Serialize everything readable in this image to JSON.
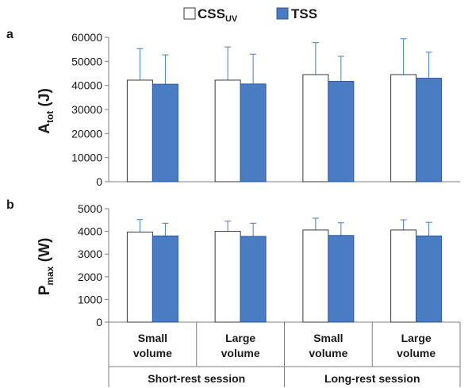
{
  "chart_data": [
    {
      "type": "bar",
      "panel": "a",
      "ylabel": "A",
      "ylabel_sub": "tot",
      "ylabel_unit": " (J)",
      "ylim": [
        0,
        60000
      ],
      "yticks": [
        "0",
        "10000",
        "20000",
        "30000",
        "40000",
        "50000",
        "60000"
      ],
      "ytick_values": [
        0,
        10000,
        20000,
        30000,
        40000,
        50000,
        60000
      ],
      "categories": [
        "Small volume",
        "Large volume",
        "Small volume",
        "Large volume"
      ],
      "series": [
        {
          "name": "CSS_UV",
          "values": [
            42200,
            42200,
            44500,
            44500
          ],
          "error_up": [
            13100,
            13800,
            13300,
            14900
          ]
        },
        {
          "name": "TSS",
          "values": [
            40500,
            40600,
            41700,
            43000
          ],
          "error_up": [
            12200,
            12400,
            10400,
            10800
          ]
        }
      ],
      "grid": false
    },
    {
      "type": "bar",
      "panel": "b",
      "ylabel": "P",
      "ylabel_sub": "max",
      "ylabel_unit": " (W)",
      "ylim": [
        0,
        5000
      ],
      "yticks": [
        "0",
        "1000",
        "2000",
        "3000",
        "4000",
        "5000"
      ],
      "ytick_values": [
        0,
        1000,
        2000,
        3000,
        4000,
        5000
      ],
      "categories": [
        "Small volume",
        "Large volume",
        "Small volume",
        "Large volume"
      ],
      "series": [
        {
          "name": "CSS_UV",
          "values": [
            3970,
            4000,
            4060,
            4060
          ],
          "error_up": [
            550,
            450,
            520,
            450
          ]
        },
        {
          "name": "TSS",
          "values": [
            3800,
            3780,
            3820,
            3800
          ],
          "error_up": [
            560,
            580,
            560,
            600
          ]
        }
      ],
      "grid": false
    }
  ],
  "legend": {
    "placement": "top-center",
    "items": [
      {
        "main": "CSS",
        "sub": "UV",
        "color": "#ffffff",
        "stroke": "#3a3a3a"
      },
      {
        "main": "TSS",
        "sub": "",
        "color": "#4a7cc4",
        "stroke": "#2c5a9a"
      }
    ]
  },
  "x_axis": {
    "categories": [
      {
        "line1": "Small",
        "line2": "volume"
      },
      {
        "line1": "Large",
        "line2": "volume"
      },
      {
        "line1": "Small",
        "line2": "volume"
      },
      {
        "line1": "Large",
        "line2": "volume"
      }
    ],
    "groups": [
      "Short-rest session",
      "Long-rest session"
    ]
  },
  "colors": {
    "css_fill": "#ffffff",
    "css_stroke": "#3a3a3a",
    "tss_fill": "#4a7cc4",
    "tss_stroke": "#2c5a9a",
    "axis": "#7f7f7f",
    "errorbar": "#4a7cc4"
  }
}
